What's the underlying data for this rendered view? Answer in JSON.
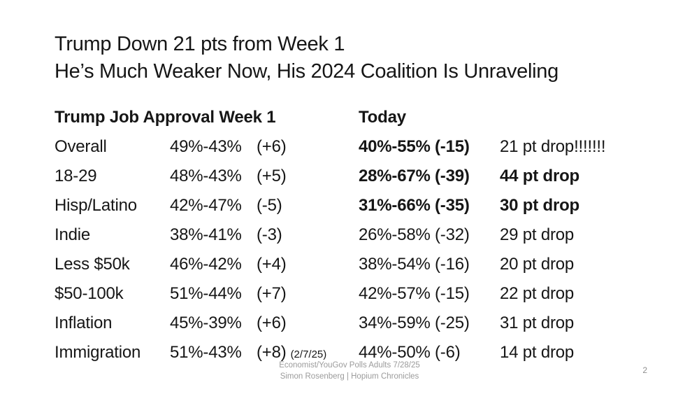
{
  "slide": {
    "title_line1": "Trump Down 21 pts from Week 1",
    "title_line2": "He’s Much Weaker Now, His 2024 Coalition Is Unraveling",
    "page_number": "2"
  },
  "table": {
    "header": {
      "week1": "Trump Job Approval Week 1",
      "today": "Today"
    },
    "rows": [
      {
        "label": "Overall",
        "week1": "49%-43%",
        "week1_margin": "(+6)",
        "today": "40%-55%",
        "today_margin": "(-15)",
        "drop": "21 pt drop!!!!!!!"
      },
      {
        "label": "18-29",
        "week1": "48%-43%",
        "week1_margin": "(+5)",
        "today": "28%-67%",
        "today_margin": "(-39)",
        "drop": "44 pt drop"
      },
      {
        "label": "Hisp/Latino",
        "week1": "42%-47%",
        "week1_margin": "(-5)",
        "today": "31%-66%",
        "today_margin": "(-35)",
        "drop": "30 pt drop"
      },
      {
        "label": "Indie",
        "week1": "38%-41%",
        "week1_margin": "(-3)",
        "today": "26%-58%",
        "today_margin": "(-32)",
        "drop": "29 pt drop"
      },
      {
        "label": "Less $50k",
        "week1": "46%-42%",
        "week1_margin": "(+4)",
        "today": "38%-54%",
        "today_margin": "(-16)",
        "drop": "20 pt drop"
      },
      {
        "label": "$50-100k",
        "week1": "51%-44%",
        "week1_margin": "(+7)",
        "today": "42%-57%",
        "today_margin": "(-15)",
        "drop": "22 pt drop"
      },
      {
        "label": "Inflation",
        "week1": "45%-39%",
        "week1_margin": "(+6)",
        "today": "34%-59%",
        "today_margin": "(-25)",
        "drop": "31 pt drop"
      },
      {
        "label": "Immigration",
        "week1": "51%-43%",
        "week1_margin": "(+8)",
        "week1_note": "(2/7/25)",
        "today": "44%-50%",
        "today_margin": "(-6)",
        "drop": "14 pt drop"
      }
    ]
  },
  "footer": {
    "source_line1": "Economist/YouGov Polls Adults 7/28/25",
    "source_line2": "Simon Rosenberg | Hopium Chronicles"
  },
  "colors": {
    "background": "#ffffff",
    "text": "#161616",
    "muted": "#9b9b9b"
  }
}
